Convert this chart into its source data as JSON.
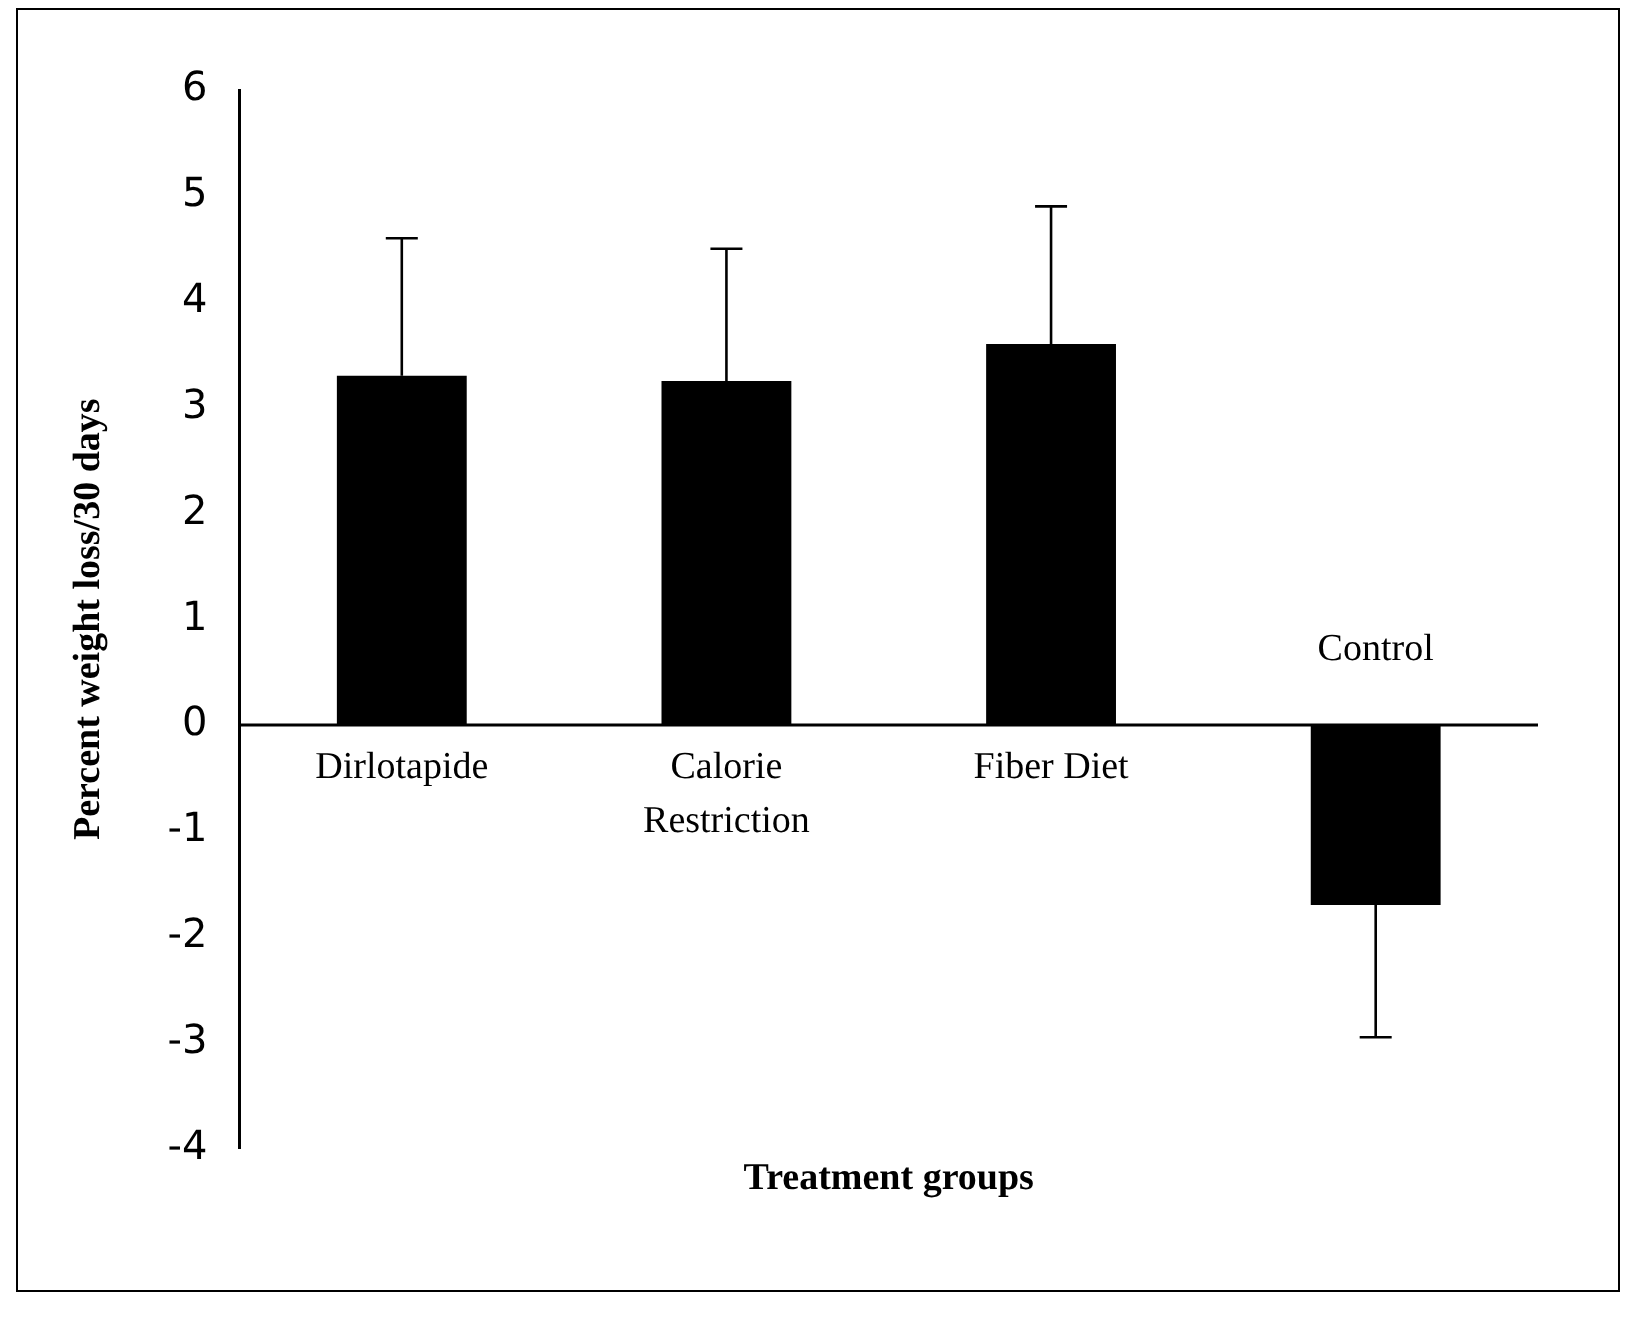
{
  "chart_data": {
    "type": "bar",
    "ylabel": "Percent weight loss/30 days",
    "xlabel": "Treatment groups",
    "categories": [
      "Dirlotapide",
      "Calorie Restriction",
      "Fiber Diet",
      "Control"
    ],
    "values": [
      3.3,
      3.25,
      3.6,
      -1.7
    ],
    "color": "#000000",
    "errors": [
      [
        3.3,
        4.6
      ],
      [
        3.25,
        4.5
      ],
      [
        3.6,
        4.9
      ],
      [
        -2.95,
        -1.7
      ]
    ],
    "ylim": [
      -4,
      6
    ],
    "yticks": [
      -4,
      -3,
      -2,
      -1,
      0,
      1,
      2,
      3,
      4,
      5,
      6
    ],
    "grid": false,
    "legend": false
  }
}
